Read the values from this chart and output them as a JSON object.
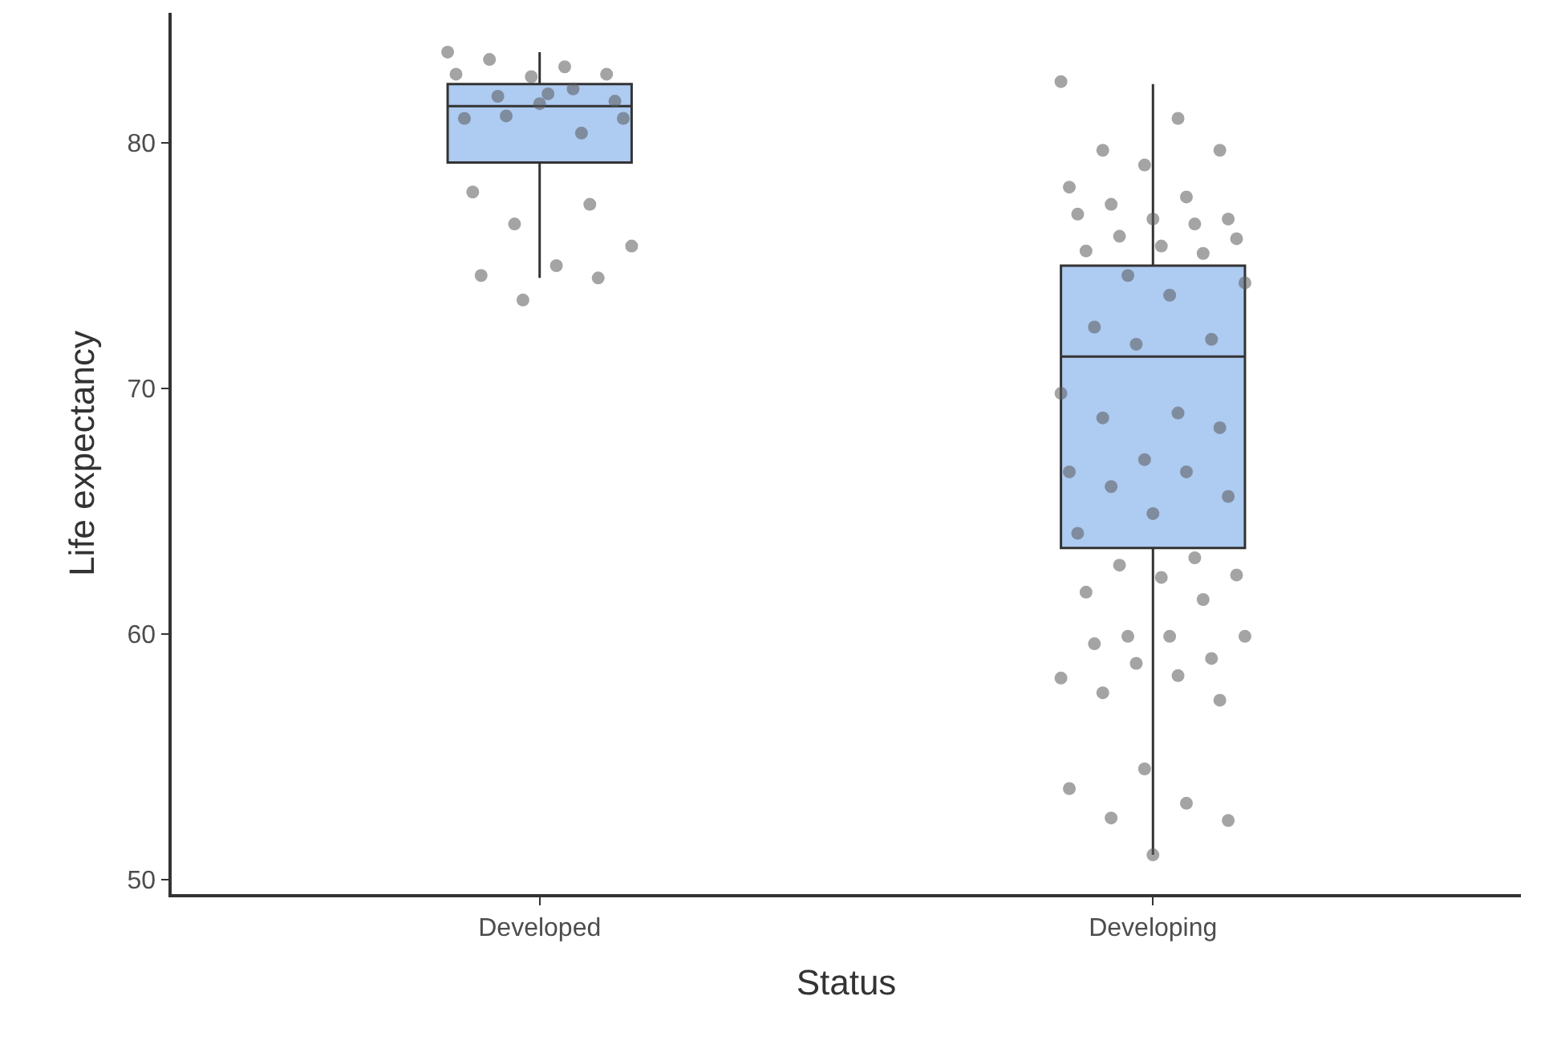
{
  "chart_data": {
    "type": "box",
    "xlabel": "Status",
    "ylabel": "Life expectancy",
    "categories": [
      "Developed",
      "Developing"
    ],
    "boxes": [
      {
        "low": 74.5,
        "q1": 79.2,
        "median": 81.5,
        "q3": 82.4,
        "high": 83.7
      },
      {
        "low": 51.0,
        "q1": 63.5,
        "median": 71.3,
        "q3": 75.0,
        "high": 82.4
      }
    ],
    "color": "#aecbf2",
    "ylim": [
      49.4,
      85.3
    ],
    "yticks": [
      50,
      60,
      70,
      80
    ],
    "grid": false,
    "series": [
      {
        "type": "scatter",
        "color": "#5a5a5a",
        "marker": "circle",
        "x": [
          "Developed",
          "Developed",
          "Developed",
          "Developed",
          "Developed",
          "Developed",
          "Developed",
          "Developed",
          "Developed",
          "Developed",
          "Developed",
          "Developed",
          "Developed",
          "Developed",
          "Developed",
          "Developed",
          "Developed",
          "Developed",
          "Developed",
          "Developed",
          "Developed",
          "Developed",
          "Developed",
          "Developing",
          "Developing",
          "Developing",
          "Developing",
          "Developing",
          "Developing",
          "Developing",
          "Developing",
          "Developing",
          "Developing",
          "Developing",
          "Developing",
          "Developing",
          "Developing",
          "Developing",
          "Developing",
          "Developing",
          "Developing",
          "Developing",
          "Developing",
          "Developing",
          "Developing",
          "Developing",
          "Developing",
          "Developing",
          "Developing",
          "Developing",
          "Developing",
          "Developing",
          "Developing",
          "Developing",
          "Developing",
          "Developing",
          "Developing",
          "Developing",
          "Developing",
          "Developing",
          "Developing",
          "Developing",
          "Developing",
          "Developing",
          "Developing",
          "Developing",
          "Developing",
          "Developing",
          "Developing",
          "Developing",
          "Developing",
          "Developing",
          "Developing",
          "Developing",
          "Developing",
          "Developing",
          "Developing",
          "Developing",
          "Developing"
        ],
        "values": [
          83.7,
          83.1,
          83.4,
          82.8,
          82.7,
          82.8,
          82.2,
          81.9,
          81.7,
          81.6,
          81.0,
          80.4,
          81.1,
          81.0,
          82.0,
          78.0,
          77.5,
          76.7,
          75.8,
          75.0,
          74.6,
          74.5,
          73.6,
          82.5,
          81.0,
          79.7,
          79.7,
          79.1,
          78.2,
          77.8,
          77.5,
          76.9,
          76.9,
          77.1,
          76.7,
          76.2,
          76.1,
          75.8,
          75.6,
          75.5,
          74.6,
          74.3,
          73.8,
          72.5,
          72.0,
          71.8,
          69.8,
          69.0,
          68.8,
          68.4,
          67.1,
          66.6,
          66.6,
          66.0,
          65.6,
          64.9,
          64.1,
          63.1,
          62.8,
          62.4,
          62.3,
          61.7,
          61.4,
          59.9,
          59.9,
          59.9,
          59.6,
          59.0,
          58.8,
          58.2,
          58.3,
          57.6,
          57.3,
          54.5,
          53.7,
          53.1,
          52.5,
          52.4,
          51.0
        ]
      }
    ]
  }
}
